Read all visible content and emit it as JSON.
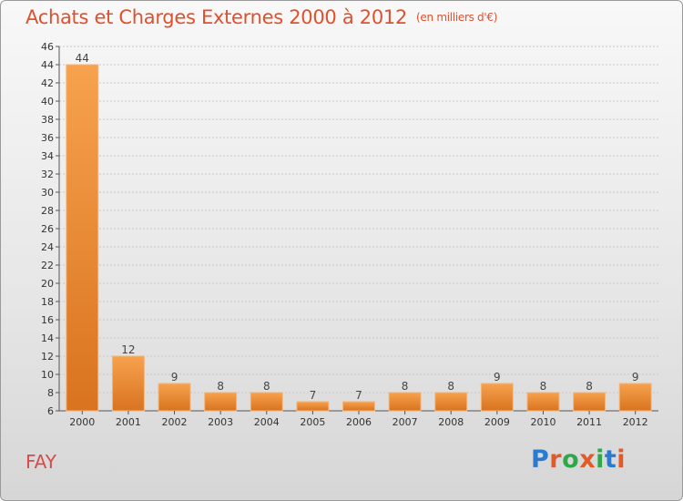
{
  "header": {
    "title": "Achats et Charges Externes 2000 à 2012",
    "unit": "(en milliers d'€)"
  },
  "footer": {
    "commune": "FAY",
    "brand": "Proxiti",
    "brand_colors": [
      "#2a7ad0",
      "#e05a2a",
      "#2fa84a",
      "#e05a2a",
      "#2fa84a",
      "#2a7ad0",
      "#e05a2a"
    ]
  },
  "colors": {
    "title": "#e0502c",
    "bar_top": "#f7a24e",
    "bar_bottom": "#d9731f",
    "axis": "#555555",
    "grid": "#c8c8c8"
  },
  "chart_data": {
    "type": "bar",
    "title": "Achats et Charges Externes 2000 à 2012",
    "xlabel": "",
    "ylabel": "",
    "categories": [
      "2000",
      "2001",
      "2002",
      "2003",
      "2004",
      "2005",
      "2006",
      "2007",
      "2008",
      "2009",
      "2010",
      "2011",
      "2012"
    ],
    "values": [
      44,
      12,
      9,
      8,
      8,
      7,
      7,
      8,
      8,
      9,
      8,
      8,
      9
    ],
    "ylim": [
      6,
      46
    ],
    "yticks": [
      6,
      8,
      10,
      12,
      14,
      16,
      18,
      20,
      22,
      24,
      26,
      28,
      30,
      32,
      34,
      36,
      38,
      40,
      42,
      44,
      46
    ],
    "grid": true
  }
}
